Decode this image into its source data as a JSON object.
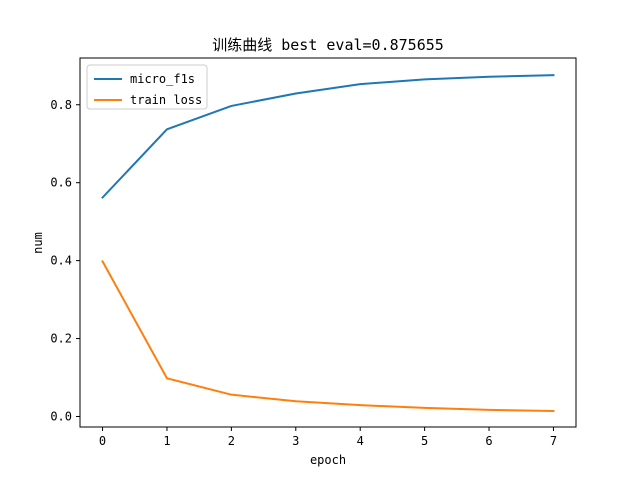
{
  "chart_data": {
    "type": "line",
    "title": "训练曲线 best eval=0.875655",
    "xlabel": "epoch",
    "ylabel": "num",
    "x": [
      0,
      1,
      2,
      3,
      4,
      5,
      6,
      7
    ],
    "x_ticks": [
      "0",
      "1",
      "2",
      "3",
      "4",
      "5",
      "6",
      "7"
    ],
    "y_ticks": [
      "0.0",
      "0.2",
      "0.4",
      "0.6",
      "0.8"
    ],
    "xlim": [
      -0.35,
      7.35
    ],
    "ylim": [
      -0.027,
      0.92
    ],
    "grid": false,
    "legend_position": "top-left",
    "series": [
      {
        "name": "micro_f1s",
        "color": "#1f77b4",
        "values": [
          0.562,
          0.737,
          0.797,
          0.829,
          0.853,
          0.865,
          0.872,
          0.876
        ]
      },
      {
        "name": "train loss",
        "color": "#ff7f0e",
        "values": [
          0.398,
          0.098,
          0.056,
          0.039,
          0.029,
          0.022,
          0.017,
          0.014
        ]
      }
    ]
  }
}
